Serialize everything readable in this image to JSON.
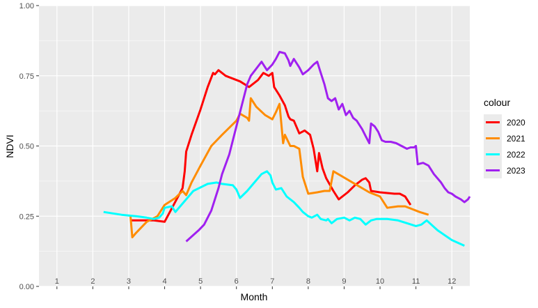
{
  "chart_data": {
    "type": "line",
    "xlabel": "Month",
    "ylabel": "NDVI",
    "xlim": [
      0.5,
      12.5
    ],
    "ylim": [
      0,
      1
    ],
    "x_ticks": [
      "1",
      "2",
      "3",
      "4",
      "5",
      "6",
      "7",
      "8",
      "9",
      "10",
      "11",
      "12"
    ],
    "y_ticks": [
      "0.00",
      "0.25",
      "0.50",
      "0.75",
      "1.00"
    ],
    "grid": true,
    "legend": {
      "title": "colour",
      "position": "right"
    },
    "series": [
      {
        "name": "2020",
        "color": "#ff0000",
        "points": [
          [
            3.05,
            0.235
          ],
          [
            3.7,
            0.235
          ],
          [
            4.0,
            0.23
          ],
          [
            4.5,
            0.35
          ],
          [
            4.56,
            0.41
          ],
          [
            4.6,
            0.48
          ],
          [
            4.75,
            0.54
          ],
          [
            5.0,
            0.63
          ],
          [
            5.2,
            0.71
          ],
          [
            5.35,
            0.76
          ],
          [
            5.4,
            0.755
          ],
          [
            5.5,
            0.77
          ],
          [
            5.7,
            0.75
          ],
          [
            6.1,
            0.73
          ],
          [
            6.35,
            0.71
          ],
          [
            6.6,
            0.735
          ],
          [
            6.75,
            0.76
          ],
          [
            6.9,
            0.75
          ],
          [
            7.0,
            0.76
          ],
          [
            7.05,
            0.71
          ],
          [
            7.2,
            0.68
          ],
          [
            7.35,
            0.645
          ],
          [
            7.45,
            0.605
          ],
          [
            7.5,
            0.595
          ],
          [
            7.6,
            0.59
          ],
          [
            7.7,
            0.56
          ],
          [
            7.75,
            0.545
          ],
          [
            7.9,
            0.555
          ],
          [
            8.05,
            0.54
          ],
          [
            8.15,
            0.49
          ],
          [
            8.25,
            0.41
          ],
          [
            8.3,
            0.475
          ],
          [
            8.4,
            0.42
          ],
          [
            8.5,
            0.385
          ],
          [
            8.7,
            0.34
          ],
          [
            8.85,
            0.31
          ],
          [
            9.1,
            0.335
          ],
          [
            9.3,
            0.36
          ],
          [
            9.5,
            0.38
          ],
          [
            9.6,
            0.385
          ],
          [
            9.7,
            0.37
          ],
          [
            9.75,
            0.34
          ],
          [
            10.0,
            0.335
          ],
          [
            10.4,
            0.33
          ],
          [
            10.55,
            0.33
          ],
          [
            10.7,
            0.32
          ],
          [
            10.85,
            0.29
          ]
        ]
      },
      {
        "name": "2021",
        "color": "#ff8c00",
        "points": [
          [
            3.05,
            0.25
          ],
          [
            3.1,
            0.175
          ],
          [
            3.2,
            0.19
          ],
          [
            3.5,
            0.23
          ],
          [
            3.8,
            0.25
          ],
          [
            4.0,
            0.29
          ],
          [
            4.3,
            0.315
          ],
          [
            4.5,
            0.34
          ],
          [
            4.6,
            0.325
          ],
          [
            4.75,
            0.37
          ],
          [
            5.0,
            0.43
          ],
          [
            5.3,
            0.5
          ],
          [
            5.6,
            0.54
          ],
          [
            6.0,
            0.59
          ],
          [
            6.1,
            0.615
          ],
          [
            6.3,
            0.6
          ],
          [
            6.35,
            0.59
          ],
          [
            6.4,
            0.67
          ],
          [
            6.55,
            0.64
          ],
          [
            6.8,
            0.61
          ],
          [
            7.0,
            0.595
          ],
          [
            7.1,
            0.62
          ],
          [
            7.2,
            0.65
          ],
          [
            7.3,
            0.51
          ],
          [
            7.35,
            0.54
          ],
          [
            7.5,
            0.5
          ],
          [
            7.6,
            0.5
          ],
          [
            7.75,
            0.49
          ],
          [
            7.85,
            0.39
          ],
          [
            8.0,
            0.33
          ],
          [
            8.25,
            0.335
          ],
          [
            8.45,
            0.34
          ],
          [
            8.6,
            0.34
          ],
          [
            8.7,
            0.41
          ],
          [
            8.9,
            0.395
          ],
          [
            9.3,
            0.365
          ],
          [
            9.7,
            0.335
          ],
          [
            10.0,
            0.32
          ],
          [
            10.2,
            0.28
          ],
          [
            10.5,
            0.285
          ],
          [
            10.7,
            0.285
          ],
          [
            11.1,
            0.265
          ],
          [
            11.35,
            0.255
          ]
        ]
      },
      {
        "name": "2022",
        "color": "#00ffff",
        "points": [
          [
            2.3,
            0.265
          ],
          [
            2.8,
            0.255
          ],
          [
            3.2,
            0.25
          ],
          [
            3.5,
            0.245
          ],
          [
            3.7,
            0.24
          ],
          [
            3.85,
            0.245
          ],
          [
            3.95,
            0.26
          ],
          [
            4.0,
            0.28
          ],
          [
            4.2,
            0.285
          ],
          [
            4.3,
            0.265
          ],
          [
            4.5,
            0.295
          ],
          [
            4.8,
            0.34
          ],
          [
            5.2,
            0.365
          ],
          [
            5.45,
            0.37
          ],
          [
            5.6,
            0.365
          ],
          [
            5.9,
            0.36
          ],
          [
            6.0,
            0.345
          ],
          [
            6.1,
            0.315
          ],
          [
            6.3,
            0.34
          ],
          [
            6.5,
            0.37
          ],
          [
            6.7,
            0.4
          ],
          [
            6.85,
            0.41
          ],
          [
            6.95,
            0.395
          ],
          [
            7.0,
            0.37
          ],
          [
            7.1,
            0.345
          ],
          [
            7.25,
            0.35
          ],
          [
            7.4,
            0.32
          ],
          [
            7.6,
            0.3
          ],
          [
            7.75,
            0.28
          ],
          [
            7.85,
            0.265
          ],
          [
            8.0,
            0.25
          ],
          [
            8.1,
            0.245
          ],
          [
            8.25,
            0.255
          ],
          [
            8.35,
            0.24
          ],
          [
            8.5,
            0.235
          ],
          [
            8.55,
            0.24
          ],
          [
            8.65,
            0.225
          ],
          [
            8.8,
            0.24
          ],
          [
            9.0,
            0.245
          ],
          [
            9.15,
            0.235
          ],
          [
            9.3,
            0.245
          ],
          [
            9.45,
            0.24
          ],
          [
            9.6,
            0.22
          ],
          [
            9.75,
            0.235
          ],
          [
            9.9,
            0.24
          ],
          [
            10.2,
            0.24
          ],
          [
            10.5,
            0.235
          ],
          [
            10.75,
            0.225
          ],
          [
            11.0,
            0.215
          ],
          [
            11.15,
            0.22
          ],
          [
            11.3,
            0.235
          ],
          [
            11.6,
            0.2
          ],
          [
            12.0,
            0.165
          ],
          [
            12.35,
            0.145
          ]
        ]
      },
      {
        "name": "2023",
        "color": "#a020f0",
        "points": [
          [
            4.6,
            0.16
          ],
          [
            4.95,
            0.2
          ],
          [
            5.1,
            0.22
          ],
          [
            5.3,
            0.27
          ],
          [
            5.5,
            0.35
          ],
          [
            5.6,
            0.4
          ],
          [
            5.8,
            0.47
          ],
          [
            6.0,
            0.57
          ],
          [
            6.2,
            0.67
          ],
          [
            6.3,
            0.72
          ],
          [
            6.4,
            0.75
          ],
          [
            6.55,
            0.775
          ],
          [
            6.7,
            0.8
          ],
          [
            6.85,
            0.77
          ],
          [
            7.0,
            0.79
          ],
          [
            7.1,
            0.81
          ],
          [
            7.2,
            0.835
          ],
          [
            7.35,
            0.83
          ],
          [
            7.45,
            0.805
          ],
          [
            7.5,
            0.785
          ],
          [
            7.6,
            0.81
          ],
          [
            7.75,
            0.78
          ],
          [
            7.85,
            0.755
          ],
          [
            8.0,
            0.77
          ],
          [
            8.15,
            0.79
          ],
          [
            8.25,
            0.8
          ],
          [
            8.35,
            0.76
          ],
          [
            8.45,
            0.72
          ],
          [
            8.55,
            0.67
          ],
          [
            8.65,
            0.66
          ],
          [
            8.75,
            0.67
          ],
          [
            8.85,
            0.63
          ],
          [
            8.95,
            0.65
          ],
          [
            9.05,
            0.61
          ],
          [
            9.15,
            0.625
          ],
          [
            9.25,
            0.6
          ],
          [
            9.35,
            0.59
          ],
          [
            9.5,
            0.56
          ],
          [
            9.6,
            0.535
          ],
          [
            9.7,
            0.51
          ],
          [
            9.75,
            0.58
          ],
          [
            9.85,
            0.57
          ],
          [
            9.95,
            0.55
          ],
          [
            10.05,
            0.52
          ],
          [
            10.15,
            0.515
          ],
          [
            10.3,
            0.515
          ],
          [
            10.45,
            0.51
          ],
          [
            10.6,
            0.5
          ],
          [
            10.75,
            0.49
          ],
          [
            10.85,
            0.495
          ],
          [
            10.95,
            0.495
          ],
          [
            11.0,
            0.5
          ],
          [
            11.05,
            0.435
          ],
          [
            11.2,
            0.44
          ],
          [
            11.35,
            0.43
          ],
          [
            11.5,
            0.4
          ],
          [
            11.7,
            0.37
          ],
          [
            11.8,
            0.35
          ],
          [
            11.9,
            0.335
          ],
          [
            12.0,
            0.33
          ],
          [
            12.1,
            0.32
          ],
          [
            12.25,
            0.31
          ],
          [
            12.35,
            0.3
          ],
          [
            12.45,
            0.31
          ],
          [
            12.5,
            0.32
          ]
        ]
      }
    ]
  }
}
